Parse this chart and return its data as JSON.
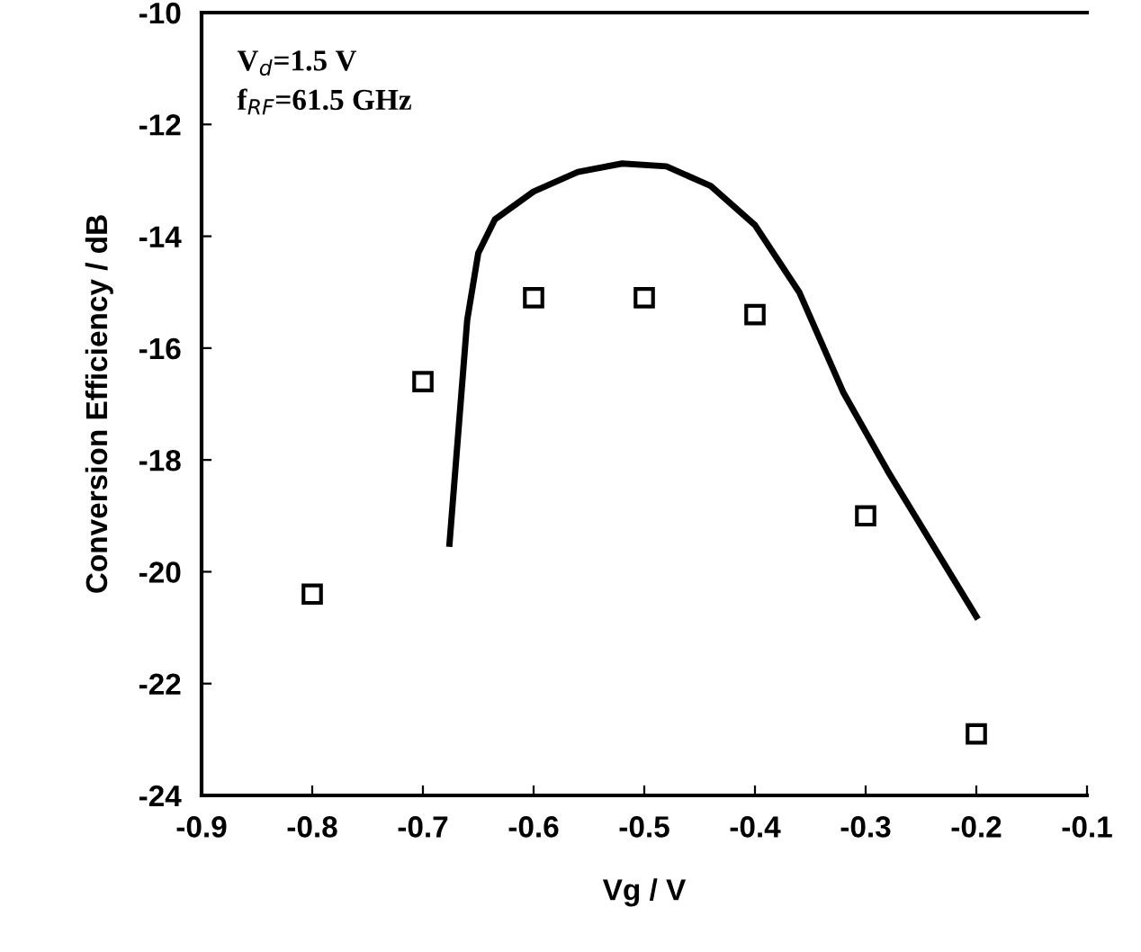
{
  "chart_data": {
    "type": "scatter",
    "xlabel": "Vg / V",
    "ylabel": "Conversion Efficiency / dB",
    "annotations": [
      "V$_{d}$=1.5 V",
      "f$_{RF}$=61.5 GHz"
    ],
    "series": [
      {
        "color": "#000000",
        "marker": "square",
        "x": [
          -0.8,
          -0.7,
          -0.6,
          -0.5,
          -0.4,
          -0.3,
          -0.2
        ],
        "values": [
          -20.4,
          -16.6,
          -15.1,
          -15.1,
          -15.4,
          -19.0,
          -22.9
        ]
      },
      {
        "type": "line",
        "color": "#000000",
        "marker": "none",
        "line_style": "solid",
        "x": [
          -0.676,
          -0.668,
          -0.66,
          -0.65,
          -0.635,
          -0.6,
          -0.56,
          -0.52,
          -0.48,
          -0.44,
          -0.4,
          -0.36,
          -0.32,
          -0.28,
          -0.24,
          -0.2
        ],
        "values": [
          -19.5,
          -17.5,
          -15.5,
          -14.3,
          -13.7,
          -13.2,
          -12.85,
          -12.7,
          -12.75,
          -13.1,
          -13.8,
          -15.0,
          -16.8,
          -18.2,
          -19.5,
          -20.8
        ]
      }
    ],
    "xlim": [
      -0.9,
      -0.1
    ],
    "xticks": [
      -0.9,
      -0.8,
      -0.7,
      -0.6,
      -0.5,
      -0.4,
      -0.3,
      -0.2,
      -0.1
    ],
    "ylim": [
      -24,
      -10
    ],
    "yticks": [
      -24,
      -22,
      -20,
      -18,
      -16,
      -14,
      -12,
      -10
    ],
    "grid": false
  }
}
